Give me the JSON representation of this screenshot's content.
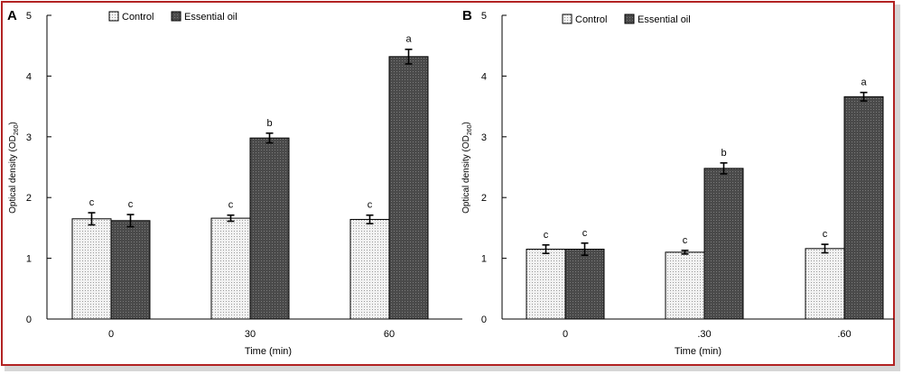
{
  "panels": [
    {
      "label": "A",
      "ylabel_main": "Optical density (OD",
      "ylabel_sub": "260",
      "ylabel_close": ")"
    },
    {
      "label": "B",
      "ylabel_main": "Optical density (OD",
      "ylabel_sub": "260",
      "ylabel_close": ")"
    }
  ],
  "chart_data": [
    {
      "type": "bar",
      "panel": "A",
      "categories": [
        "0",
        "30",
        "60"
      ],
      "xlabel": "Time (min)",
      "ylim": [
        0,
        5
      ],
      "yticks": [
        "0",
        "1",
        "2",
        "3",
        "4",
        "5"
      ],
      "legend_position": "top-left",
      "series": [
        {
          "name": "Control",
          "values": [
            1.65,
            1.66,
            1.64
          ],
          "errors": [
            0.1,
            0.05,
            0.07
          ],
          "letters": [
            "c",
            "c",
            "c"
          ],
          "pattern": "dots-light"
        },
        {
          "name": "Essential oil",
          "values": [
            1.62,
            2.98,
            4.32
          ],
          "errors": [
            0.1,
            0.08,
            0.12
          ],
          "letters": [
            "c",
            "b",
            "a"
          ],
          "pattern": "dots-dark"
        }
      ]
    },
    {
      "type": "bar",
      "panel": "B",
      "categories": [
        "0",
        ".30",
        ".60"
      ],
      "xlabel": "Time (min)",
      "ylim": [
        0,
        5
      ],
      "yticks": [
        "0",
        "1",
        "2",
        "3",
        "4",
        "5"
      ],
      "legend_position": "top-left",
      "series": [
        {
          "name": "Control",
          "values": [
            1.15,
            1.1,
            1.16
          ],
          "errors": [
            0.07,
            0.03,
            0.07
          ],
          "letters": [
            "c",
            "c",
            "c"
          ],
          "pattern": "dots-light"
        },
        {
          "name": "Essential oil",
          "values": [
            1.15,
            2.48,
            3.66
          ],
          "errors": [
            0.1,
            0.09,
            0.07
          ],
          "letters": [
            "c",
            "b",
            "a"
          ],
          "pattern": "dots-dark"
        }
      ]
    }
  ],
  "colors": {
    "frame": "#b22222",
    "control_fill": "#f2f2f2",
    "control_dot": "#9a9a9a",
    "oil_fill": "#4a4a4a",
    "oil_dot": "#7a7a7a"
  }
}
